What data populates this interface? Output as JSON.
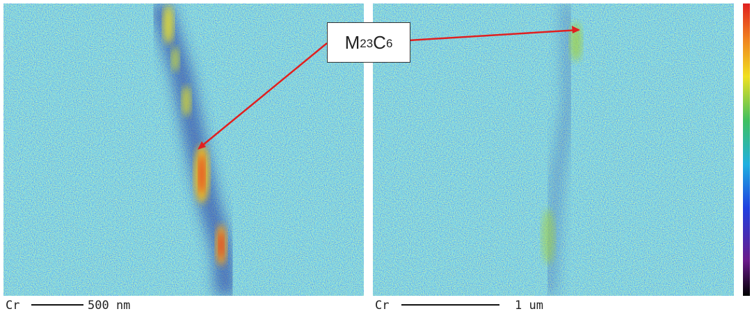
{
  "panels": [
    {
      "element": "Cr",
      "scale": "500 nm"
    },
    {
      "element": "Cr",
      "scale": "1 um"
    }
  ],
  "annotation": {
    "label": "M23C6"
  }
}
